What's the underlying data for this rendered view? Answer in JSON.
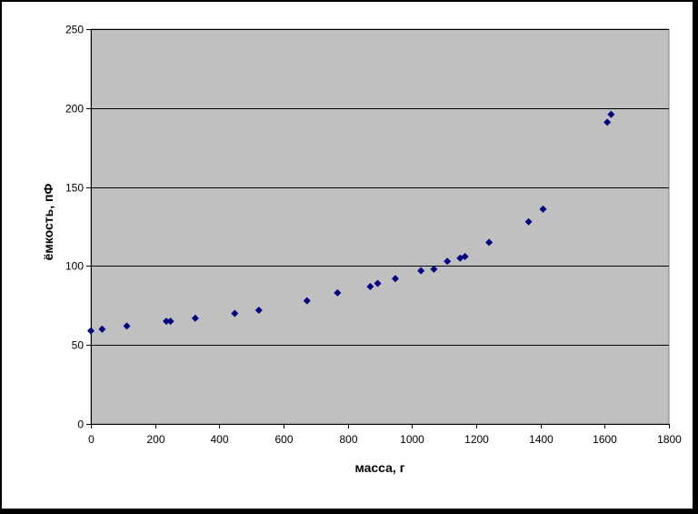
{
  "chart_data": {
    "type": "scatter",
    "title": "",
    "xlabel": "масса, г",
    "ylabel": "ёмкость, пФ",
    "xlim": [
      0,
      1800
    ],
    "ylim": [
      0,
      250
    ],
    "xticks": [
      0,
      200,
      400,
      600,
      800,
      1000,
      1200,
      1400,
      1600,
      1800
    ],
    "yticks": [
      0,
      50,
      100,
      150,
      200,
      250
    ],
    "grid": "horizontal",
    "plot_background": "#c0c0c0",
    "marker": "diamond",
    "marker_color": "#000080",
    "legend": "none",
    "points": [
      {
        "x": 0,
        "y": 59
      },
      {
        "x": 35,
        "y": 60
      },
      {
        "x": 112,
        "y": 62
      },
      {
        "x": 235,
        "y": 65
      },
      {
        "x": 248,
        "y": 65
      },
      {
        "x": 325,
        "y": 67
      },
      {
        "x": 448,
        "y": 70
      },
      {
        "x": 523,
        "y": 72
      },
      {
        "x": 673,
        "y": 78
      },
      {
        "x": 768,
        "y": 83
      },
      {
        "x": 870,
        "y": 87
      },
      {
        "x": 893,
        "y": 89
      },
      {
        "x": 948,
        "y": 92
      },
      {
        "x": 1028,
        "y": 97
      },
      {
        "x": 1068,
        "y": 98
      },
      {
        "x": 1110,
        "y": 103
      },
      {
        "x": 1150,
        "y": 105
      },
      {
        "x": 1165,
        "y": 106
      },
      {
        "x": 1240,
        "y": 115
      },
      {
        "x": 1363,
        "y": 128
      },
      {
        "x": 1408,
        "y": 136
      },
      {
        "x": 1608,
        "y": 191
      },
      {
        "x": 1620,
        "y": 196
      }
    ]
  }
}
